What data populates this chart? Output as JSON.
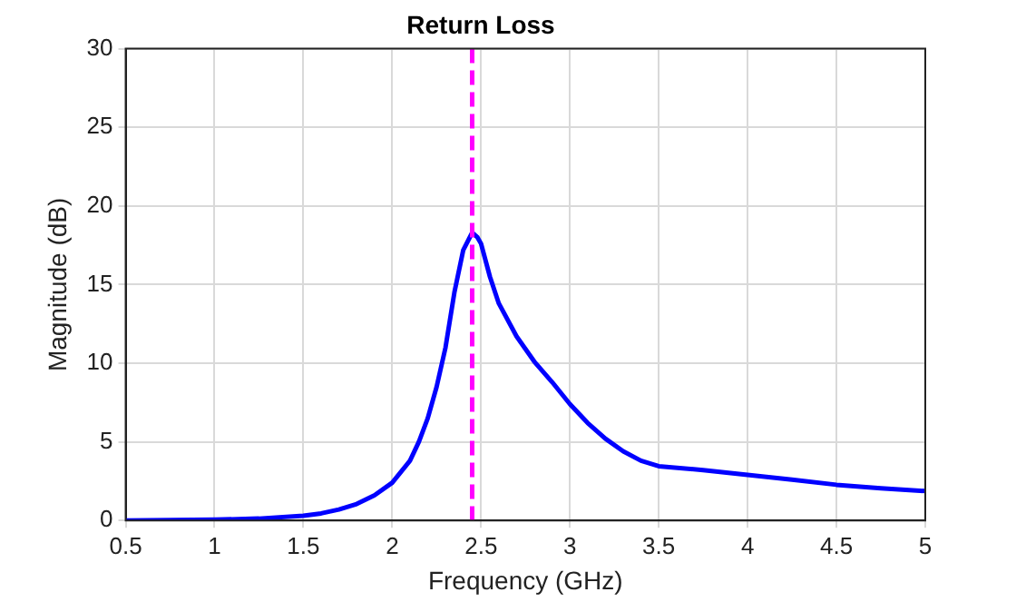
{
  "chart_data": {
    "type": "line",
    "title": "Return Loss",
    "xlabel": "Frequency (GHz)",
    "ylabel": "Magnitude (dB)",
    "x": [
      0.5,
      0.75,
      1,
      1.25,
      1.5,
      1.6,
      1.7,
      1.8,
      1.9,
      2.0,
      2.1,
      2.15,
      2.2,
      2.25,
      2.3,
      2.35,
      2.4,
      2.45,
      2.48,
      2.5,
      2.55,
      2.6,
      2.7,
      2.8,
      2.9,
      3.0,
      3.1,
      3.2,
      3.3,
      3.4,
      3.5,
      3.75,
      4.0,
      4.25,
      4.5,
      4.75,
      5.0
    ],
    "series": [
      {
        "color": "#0000ff",
        "values": [
          0,
          0.02,
          0.05,
          0.12,
          0.3,
          0.45,
          0.7,
          1.05,
          1.6,
          2.4,
          3.8,
          5.0,
          6.5,
          8.5,
          11,
          14.5,
          17.2,
          18.3,
          18.0,
          17.6,
          15.5,
          13.8,
          11.7,
          10.1,
          8.8,
          7.4,
          6.2,
          5.2,
          4.4,
          3.8,
          3.45,
          3.2,
          2.9,
          2.6,
          2.27,
          2.05,
          1.87
        ]
      }
    ],
    "xlim": [
      0.5,
      5
    ],
    "xticks": [
      0.5,
      1,
      1.5,
      2,
      2.5,
      3,
      3.5,
      4,
      4.5,
      5
    ],
    "ylim": [
      0,
      30
    ],
    "yticks": [
      0,
      5,
      10,
      15,
      20,
      25,
      30
    ],
    "ref_lines": [
      {
        "axis": "x",
        "value": 2.45,
        "color": "#ff00ff",
        "line_style": "dashed"
      }
    ],
    "grid": true,
    "legend": false,
    "marker": "none",
    "line_style": "solid"
  }
}
